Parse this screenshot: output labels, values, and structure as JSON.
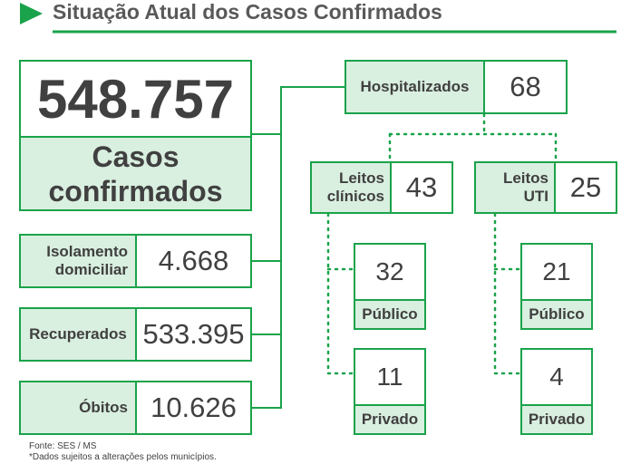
{
  "header": {
    "title": "Situação Atual dos Casos Confirmados"
  },
  "main_card": {
    "value": "548.757",
    "label_line1": "Casos",
    "label_line2": "confirmados"
  },
  "left": [
    {
      "label_line1": "Isolamento",
      "label_line2": "domiciliar",
      "value": "4.668"
    },
    {
      "label": "Recuperados",
      "value": "533.395"
    },
    {
      "label": "Óbitos",
      "value": "10.626"
    }
  ],
  "hospital": {
    "label": "Hospitalizados",
    "value": "68"
  },
  "clinicos": {
    "label_line1": "Leitos",
    "label_line2": "clínicos",
    "value": "43",
    "publico": {
      "value": "32",
      "label": "Público"
    },
    "privado": {
      "value": "11",
      "label": "Privado"
    }
  },
  "uti": {
    "label_line1": "Leitos",
    "label_line2": "UTI",
    "value": "25",
    "publico": {
      "value": "21",
      "label": "Público"
    },
    "privado": {
      "value": "4",
      "label": "Privado"
    }
  },
  "footer": {
    "line1": "Fonte: SES / MS",
    "line2": "*Dados sujeitos a alterações pelos municípios."
  },
  "colors": {
    "accent": "#1aa34a",
    "label_bg": "#d9efe0",
    "text": "#404040"
  }
}
